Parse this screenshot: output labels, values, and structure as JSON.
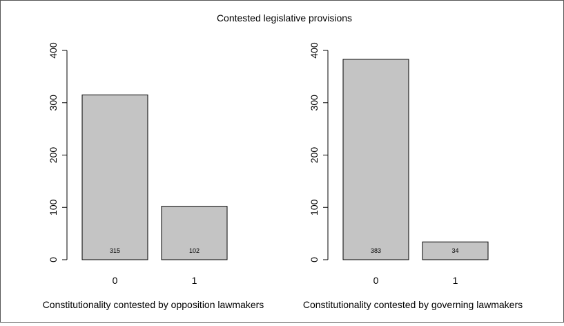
{
  "title": "Contested legislative provisions",
  "colors": {
    "bar_fill": "#c4c4c4",
    "bar_stroke": "#000000",
    "axis": "#000000",
    "border": "#555555"
  },
  "chart_data": [
    {
      "type": "bar",
      "categories": [
        "0",
        "1"
      ],
      "values": [
        315,
        102
      ],
      "value_labels": [
        "315",
        "102"
      ],
      "xlabel": "Constitutionality contested by opposition lawmakers",
      "ylabel": "",
      "ylim": [
        0,
        400
      ],
      "yticks": [
        0,
        100,
        200,
        300,
        400
      ],
      "ytick_labels": [
        "0",
        "100",
        "200",
        "300",
        "400"
      ],
      "grid": false
    },
    {
      "type": "bar",
      "categories": [
        "0",
        "1"
      ],
      "values": [
        383,
        34
      ],
      "value_labels": [
        "383",
        "34"
      ],
      "xlabel": "Constitutionality contested by governing lawmakers",
      "ylabel": "",
      "ylim": [
        0,
        400
      ],
      "yticks": [
        0,
        100,
        200,
        300,
        400
      ],
      "ytick_labels": [
        "0",
        "100",
        "200",
        "300",
        "400"
      ],
      "grid": false
    }
  ]
}
